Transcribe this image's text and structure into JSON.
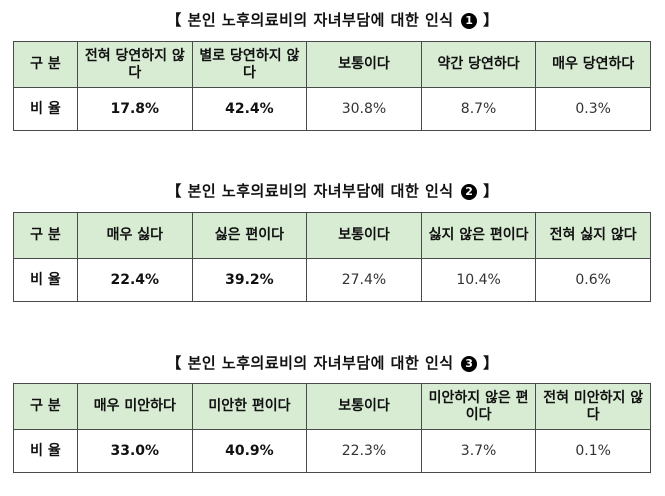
{
  "tables": [
    {
      "title": "【 본인 노후의료비의 자녀부담에 대한 인식",
      "badge": "1",
      "title_end": "】",
      "header_label": "구 분",
      "headers": [
        "전혀 당연하지 않다",
        "별로 당연하지 않다",
        "보통이다",
        "약간 당연하다",
        "매우 당연하다"
      ],
      "row_label": "비 율",
      "values": [
        "17.8%",
        "42.4%",
        "30.8%",
        "8.7%",
        "0.3%"
      ]
    },
    {
      "title": "【 본인 노후의료비의 자녀부담에 대한 인식",
      "badge": "2",
      "title_end": "】",
      "header_label": "구 분",
      "headers": [
        "매우 싫다",
        "싫은 편이다",
        "보통이다",
        "싫지 않은 편이다",
        "전혀 싫지 않다"
      ],
      "row_label": "비 율",
      "values": [
        "22.4%",
        "39.2%",
        "27.4%",
        "10.4%",
        "0.6%"
      ]
    },
    {
      "title": "【 본인 노후의료비의 자녀부담에 대한 인식",
      "badge": "3",
      "title_end": "】",
      "header_label": "구 분",
      "headers": [
        "매우 미안하다",
        "미안한 편이다",
        "보통이다",
        "미안하지 않은 편이다",
        "전혀 미안하지 않다"
      ],
      "row_label": "비 율",
      "values": [
        "33.0%",
        "40.9%",
        "22.3%",
        "3.7%",
        "0.1%"
      ]
    }
  ]
}
